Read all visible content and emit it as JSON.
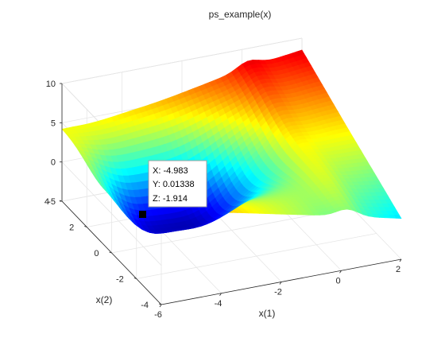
{
  "chart_data": {
    "type": "surface",
    "title": "ps_example(x)",
    "xlabel": "x(1)",
    "ylabel": "x(2)",
    "zlabel": "",
    "xlim": [
      -6,
      2
    ],
    "ylim": [
      -4,
      4
    ],
    "zlim": [
      -5,
      10
    ],
    "x_ticks": [
      "-6",
      "-4",
      "-2",
      "0",
      "2"
    ],
    "y_ticks": [
      "-4",
      "-2",
      "0",
      "2",
      "4"
    ],
    "z_ticks": [
      "-5",
      "0",
      "5",
      "10"
    ],
    "colormap": "jet",
    "grid": true,
    "datatip": {
      "x_text": "X: -4.983",
      "y_text": "Y: 0.01338",
      "z_text": "Z: -1.914",
      "x": -4.983,
      "y": 0.01338,
      "z": -1.914
    },
    "approx_corner_values": {
      "x=-6,y=4": 4.5,
      "x=-6,y=-4": 7.3,
      "x=2,y=4": 8.5,
      "x=2,y=-4": 0.2,
      "minimum_region": {
        "x": -3.2,
        "y": 0.5,
        "z": -5
      }
    }
  }
}
